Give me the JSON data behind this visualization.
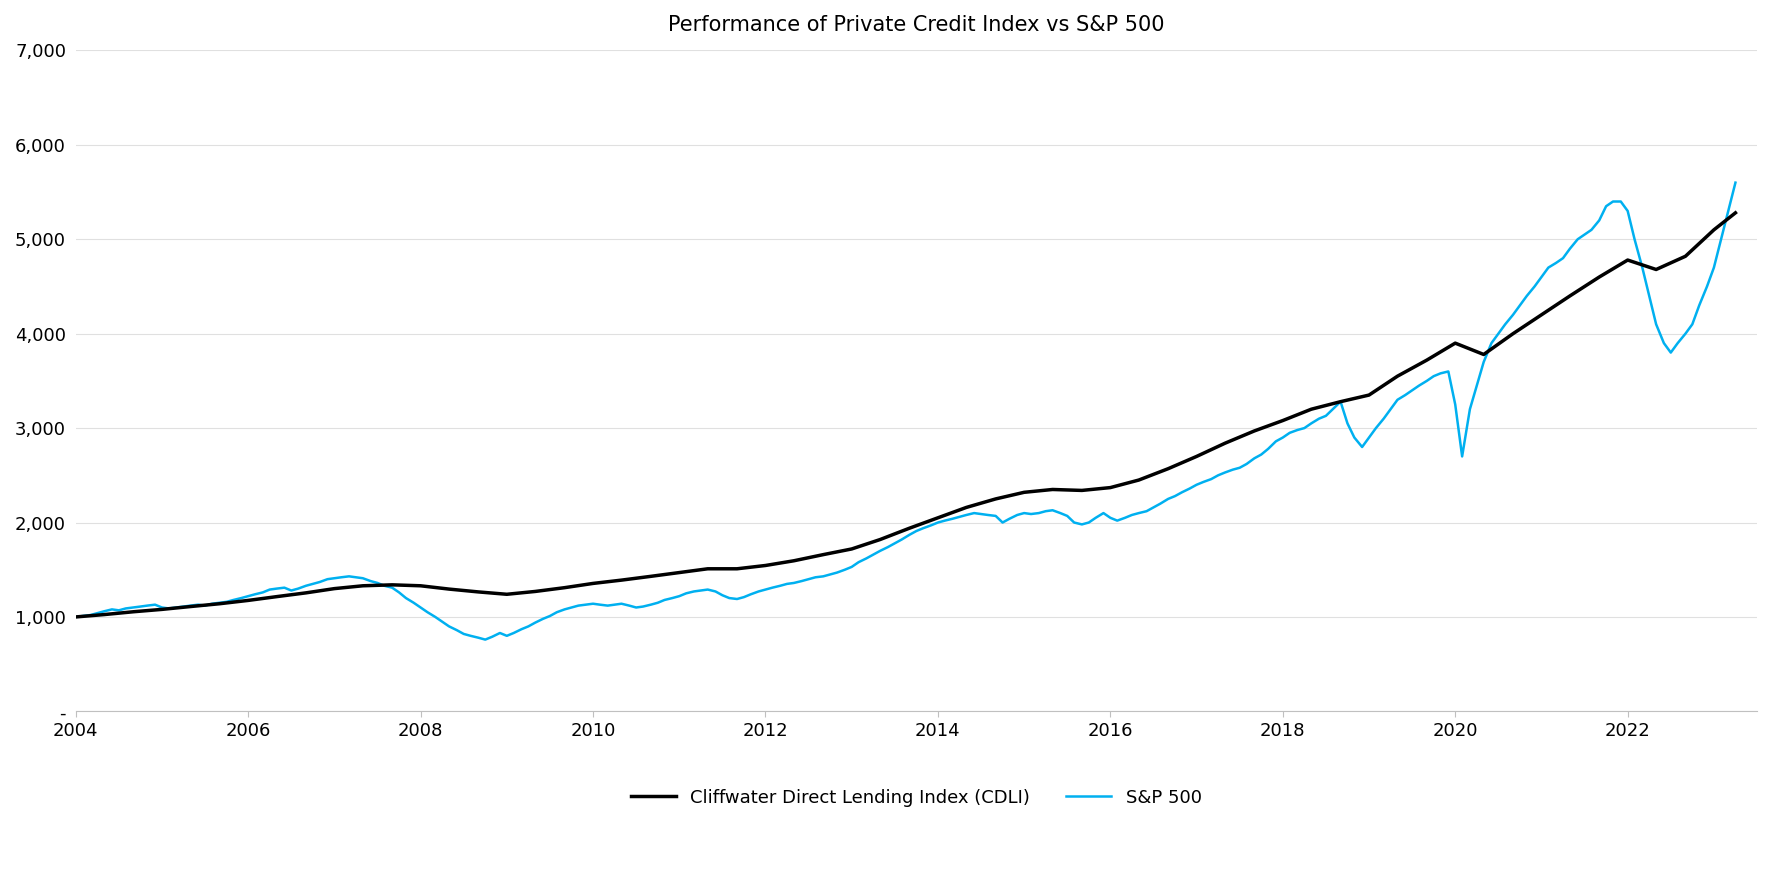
{
  "title": "Performance of Private Credit Index vs S&P 500",
  "title_fontsize": 15,
  "background_color": "#ffffff",
  "cdli_color": "#000000",
  "sp500_color": "#00b0f0",
  "cdli_label": "Cliffwater Direct Lending Index (CDLI)",
  "sp500_label": "S&P 500",
  "cdli_linewidth": 2.5,
  "sp500_linewidth": 1.8,
  "ylim": [
    0,
    7000
  ],
  "yticks": [
    0,
    1000,
    2000,
    3000,
    4000,
    5000,
    6000,
    7000
  ],
  "ytick_labels": [
    "-",
    "1,000",
    "2,000",
    "3,000",
    "4,000",
    "5,000",
    "6,000",
    "7,000"
  ],
  "xticks": [
    2004,
    2006,
    2008,
    2010,
    2012,
    2014,
    2016,
    2018,
    2020,
    2022
  ],
  "xlim_start": 2004.0,
  "xlim_end": 2023.5,
  "years_cdli": [
    2004.0,
    2004.33,
    2004.67,
    2005.0,
    2005.33,
    2005.67,
    2006.0,
    2006.33,
    2006.67,
    2007.0,
    2007.33,
    2007.67,
    2008.0,
    2008.33,
    2008.67,
    2009.0,
    2009.33,
    2009.67,
    2010.0,
    2010.33,
    2010.67,
    2011.0,
    2011.33,
    2011.67,
    2012.0,
    2012.33,
    2012.67,
    2013.0,
    2013.33,
    2013.67,
    2014.0,
    2014.33,
    2014.67,
    2015.0,
    2015.33,
    2015.67,
    2016.0,
    2016.33,
    2016.67,
    2017.0,
    2017.33,
    2017.67,
    2018.0,
    2018.33,
    2018.67,
    2019.0,
    2019.33,
    2019.67,
    2020.0,
    2020.33,
    2020.67,
    2021.0,
    2021.33,
    2021.67,
    2022.0,
    2022.33,
    2022.67,
    2023.0,
    2023.25
  ],
  "values_cdli": [
    1000,
    1025,
    1055,
    1080,
    1110,
    1140,
    1175,
    1215,
    1255,
    1300,
    1330,
    1340,
    1330,
    1295,
    1265,
    1240,
    1270,
    1310,
    1355,
    1390,
    1430,
    1470,
    1510,
    1510,
    1545,
    1595,
    1660,
    1720,
    1820,
    1940,
    2050,
    2160,
    2250,
    2320,
    2350,
    2340,
    2370,
    2450,
    2570,
    2700,
    2840,
    2970,
    3080,
    3200,
    3280,
    3350,
    3550,
    3720,
    3900,
    3780,
    4000,
    4200,
    4400,
    4600,
    4780,
    4680,
    4820,
    5100,
    5280
  ],
  "years_sp500": [
    2004.0,
    2004.08,
    2004.17,
    2004.25,
    2004.33,
    2004.42,
    2004.5,
    2004.58,
    2004.67,
    2004.75,
    2004.83,
    2004.92,
    2005.0,
    2005.08,
    2005.17,
    2005.25,
    2005.33,
    2005.42,
    2005.5,
    2005.58,
    2005.67,
    2005.75,
    2005.83,
    2005.92,
    2006.0,
    2006.08,
    2006.17,
    2006.25,
    2006.33,
    2006.42,
    2006.5,
    2006.58,
    2006.67,
    2006.75,
    2006.83,
    2006.92,
    2007.0,
    2007.08,
    2007.17,
    2007.25,
    2007.33,
    2007.42,
    2007.5,
    2007.58,
    2007.67,
    2007.75,
    2007.83,
    2007.92,
    2008.0,
    2008.08,
    2008.17,
    2008.25,
    2008.33,
    2008.42,
    2008.5,
    2008.58,
    2008.67,
    2008.75,
    2008.83,
    2008.92,
    2009.0,
    2009.08,
    2009.17,
    2009.25,
    2009.33,
    2009.42,
    2009.5,
    2009.58,
    2009.67,
    2009.75,
    2009.83,
    2009.92,
    2010.0,
    2010.08,
    2010.17,
    2010.25,
    2010.33,
    2010.42,
    2010.5,
    2010.58,
    2010.67,
    2010.75,
    2010.83,
    2010.92,
    2011.0,
    2011.08,
    2011.17,
    2011.25,
    2011.33,
    2011.42,
    2011.5,
    2011.58,
    2011.67,
    2011.75,
    2011.83,
    2011.92,
    2012.0,
    2012.08,
    2012.17,
    2012.25,
    2012.33,
    2012.42,
    2012.5,
    2012.58,
    2012.67,
    2012.75,
    2012.83,
    2012.92,
    2013.0,
    2013.08,
    2013.17,
    2013.25,
    2013.33,
    2013.42,
    2013.5,
    2013.58,
    2013.67,
    2013.75,
    2013.83,
    2013.92,
    2014.0,
    2014.08,
    2014.17,
    2014.25,
    2014.33,
    2014.42,
    2014.5,
    2014.58,
    2014.67,
    2014.75,
    2014.83,
    2014.92,
    2015.0,
    2015.08,
    2015.17,
    2015.25,
    2015.33,
    2015.42,
    2015.5,
    2015.58,
    2015.67,
    2015.75,
    2015.83,
    2015.92,
    2016.0,
    2016.08,
    2016.17,
    2016.25,
    2016.33,
    2016.42,
    2016.5,
    2016.58,
    2016.67,
    2016.75,
    2016.83,
    2016.92,
    2017.0,
    2017.08,
    2017.17,
    2017.25,
    2017.33,
    2017.42,
    2017.5,
    2017.58,
    2017.67,
    2017.75,
    2017.83,
    2017.92,
    2018.0,
    2018.08,
    2018.17,
    2018.25,
    2018.33,
    2018.42,
    2018.5,
    2018.58,
    2018.67,
    2018.75,
    2018.83,
    2018.92,
    2019.0,
    2019.08,
    2019.17,
    2019.25,
    2019.33,
    2019.42,
    2019.5,
    2019.58,
    2019.67,
    2019.75,
    2019.83,
    2019.92,
    2020.0,
    2020.08,
    2020.17,
    2020.25,
    2020.33,
    2020.42,
    2020.5,
    2020.58,
    2020.67,
    2020.75,
    2020.83,
    2020.92,
    2021.0,
    2021.08,
    2021.17,
    2021.25,
    2021.33,
    2021.42,
    2021.5,
    2021.58,
    2021.67,
    2021.75,
    2021.83,
    2021.92,
    2022.0,
    2022.08,
    2022.17,
    2022.25,
    2022.33,
    2022.42,
    2022.5,
    2022.58,
    2022.67,
    2022.75,
    2022.83,
    2022.92,
    2023.0,
    2023.25
  ],
  "values_sp500": [
    1000,
    1010,
    1020,
    1040,
    1060,
    1080,
    1070,
    1090,
    1100,
    1110,
    1120,
    1130,
    1100,
    1090,
    1100,
    1110,
    1120,
    1130,
    1120,
    1140,
    1150,
    1160,
    1180,
    1200,
    1220,
    1240,
    1260,
    1290,
    1300,
    1310,
    1280,
    1300,
    1330,
    1350,
    1370,
    1400,
    1410,
    1420,
    1430,
    1420,
    1410,
    1380,
    1360,
    1330,
    1310,
    1260,
    1200,
    1150,
    1100,
    1050,
    1000,
    950,
    900,
    860,
    820,
    800,
    780,
    760,
    790,
    830,
    800,
    830,
    870,
    900,
    940,
    980,
    1010,
    1050,
    1080,
    1100,
    1120,
    1130,
    1140,
    1130,
    1120,
    1130,
    1140,
    1120,
    1100,
    1110,
    1130,
    1150,
    1180,
    1200,
    1220,
    1250,
    1270,
    1280,
    1290,
    1270,
    1230,
    1200,
    1190,
    1210,
    1240,
    1270,
    1290,
    1310,
    1330,
    1350,
    1360,
    1380,
    1400,
    1420,
    1430,
    1450,
    1470,
    1500,
    1530,
    1580,
    1620,
    1660,
    1700,
    1740,
    1780,
    1820,
    1870,
    1910,
    1940,
    1970,
    2000,
    2020,
    2040,
    2060,
    2080,
    2100,
    2090,
    2080,
    2070,
    2000,
    2040,
    2080,
    2100,
    2090,
    2100,
    2120,
    2130,
    2100,
    2070,
    2000,
    1980,
    2000,
    2050,
    2100,
    2050,
    2020,
    2050,
    2080,
    2100,
    2120,
    2160,
    2200,
    2250,
    2280,
    2320,
    2360,
    2400,
    2430,
    2460,
    2500,
    2530,
    2560,
    2580,
    2620,
    2680,
    2720,
    2780,
    2860,
    2900,
    2950,
    2980,
    3000,
    3050,
    3100,
    3130,
    3200,
    3280,
    3050,
    2900,
    2800,
    2900,
    3000,
    3100,
    3200,
    3300,
    3350,
    3400,
    3450,
    3500,
    3550,
    3580,
    3600,
    3250,
    2700,
    3200,
    3450,
    3700,
    3900,
    4000,
    4100,
    4200,
    4300,
    4400,
    4500,
    4600,
    4700,
    4750,
    4800,
    4900,
    5000,
    5050,
    5100,
    5200,
    5350,
    5400,
    5400,
    5300,
    5000,
    4700,
    4400,
    4100,
    3900,
    3800,
    3900,
    4000,
    4100,
    4300,
    4500,
    4700,
    5600
  ],
  "legend_fontsize": 13,
  "tick_fontsize": 13
}
